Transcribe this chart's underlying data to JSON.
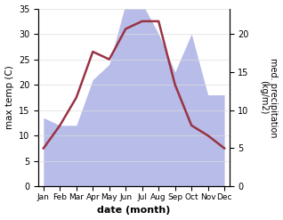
{
  "months": [
    "Jan",
    "Feb",
    "Mar",
    "Apr",
    "May",
    "Jun",
    "Jul",
    "Aug",
    "Sep",
    "Oct",
    "Nov",
    "Dec"
  ],
  "month_indices": [
    0,
    1,
    2,
    3,
    4,
    5,
    6,
    7,
    8,
    9,
    10,
    11
  ],
  "temperature": [
    7.5,
    12.0,
    17.5,
    26.5,
    25.0,
    31.0,
    32.5,
    32.5,
    20.0,
    12.0,
    10.0,
    7.5
  ],
  "precipitation": [
    9.0,
    8.0,
    8.0,
    14.0,
    16.0,
    24.0,
    24.0,
    20.0,
    15.0,
    20.0,
    12.0,
    12.0
  ],
  "temp_color": "#993344",
  "precip_fill_color": "#b8bce8",
  "temp_ylim": [
    0,
    35
  ],
  "precip_ylim": [
    0,
    23.33
  ],
  "temp_yticks": [
    0,
    5,
    10,
    15,
    20,
    25,
    30,
    35
  ],
  "precip_yticks": [
    0,
    5,
    10,
    15,
    20
  ],
  "xlabel": "date (month)",
  "ylabel_left": "max temp (C)",
  "ylabel_right": "med. precipitation\n(kg/m2)",
  "background_color": "#ffffff",
  "fig_width": 3.18,
  "fig_height": 2.47,
  "dpi": 100
}
